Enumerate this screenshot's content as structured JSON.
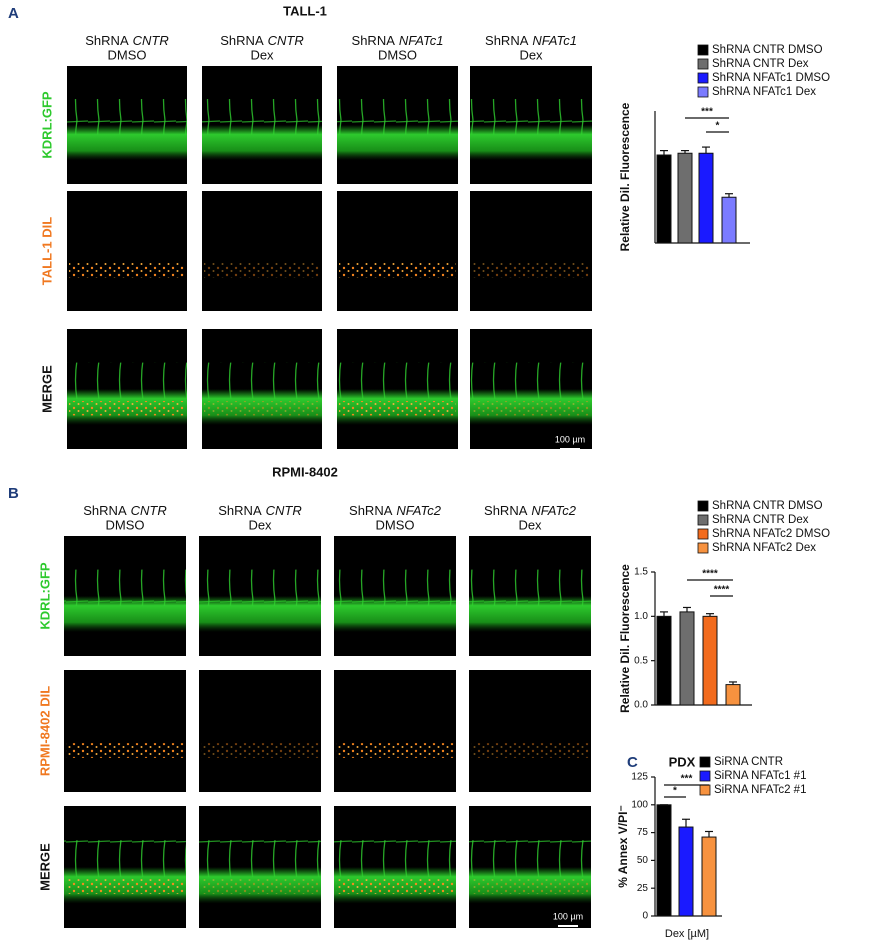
{
  "figure": {
    "panels": [
      {
        "label": "A",
        "title": "TALL-1",
        "columns": [
          {
            "prefix": "ShRNA",
            "gene": "CNTR",
            "condition": "DMSO"
          },
          {
            "prefix": "ShRNA",
            "gene": "CNTR",
            "condition": "Dex"
          },
          {
            "prefix": "ShRNA",
            "gene": "NFATc1",
            "condition": "DMSO"
          },
          {
            "prefix": "ShRNA",
            "gene": "NFATc1",
            "condition": "Dex"
          }
        ],
        "rows": [
          "KDRL:GFP",
          "TALL-1 DIL",
          "MERGE"
        ],
        "scale_bar": "100 µm"
      },
      {
        "label": "B",
        "title": "RPMI-8402",
        "columns": [
          {
            "prefix": "ShRNA",
            "gene": "CNTR",
            "condition": "DMSO"
          },
          {
            "prefix": "ShRNA",
            "gene": "CNTR",
            "condition": "Dex"
          },
          {
            "prefix": "ShRNA",
            "gene": "NFATc2",
            "condition": "DMSO"
          },
          {
            "prefix": "ShRNA",
            "gene": "NFATc2",
            "condition": "Dex"
          }
        ],
        "rows": [
          "KDRL:GFP",
          "RPMI-8402  DIL",
          "MERGE"
        ],
        "scale_bar": "100 µm"
      },
      {
        "label": "C"
      }
    ]
  },
  "chart_data": [
    {
      "type": "bar",
      "y_label": "Relative Dil.  Fluorescence",
      "ylim": [
        0,
        1.5
      ],
      "series": [
        {
          "name": "ShRNA CNTR DMSO",
          "color": "#000000",
          "values": [
            1.0
          ],
          "errors": [
            0.05
          ]
        },
        {
          "name": "ShRNA CNTR Dex",
          "color": "#6e6e6e",
          "values": [
            1.02
          ],
          "errors": [
            0.03
          ]
        },
        {
          "name": "ShRNA NFATc1 DMSO",
          "color": "#1a1aff",
          "values": [
            1.02
          ],
          "errors": [
            0.07
          ]
        },
        {
          "name": "ShRNA NFATc1 Dex",
          "color": "#7b7bff",
          "values": [
            0.52
          ],
          "errors": [
            0.04
          ]
        }
      ],
      "annotations": [
        "***",
        "*"
      ]
    },
    {
      "type": "bar",
      "y_label": "Relative Dil.  Fluorescence",
      "ylim": [
        0,
        1.5
      ],
      "yticks": [
        {
          "value": 0,
          "label": "0.0"
        },
        0.5,
        {
          "value": 1,
          "label": "1.0"
        },
        1.5
      ],
      "series": [
        {
          "name": "ShRNA CNTR DMSO",
          "color": "#000000",
          "values": [
            1.0
          ],
          "errors": [
            0.05
          ]
        },
        {
          "name": "ShRNA CNTR Dex",
          "color": "#6e6e6e",
          "values": [
            1.05
          ],
          "errors": [
            0.05
          ]
        },
        {
          "name": "ShRNA NFATc2 DMSO",
          "color": "#f26b1d",
          "values": [
            1.0
          ],
          "errors": [
            0.03
          ]
        },
        {
          "name": "ShRNA NFATc2 Dex",
          "color": "#f7923f",
          "values": [
            0.23
          ],
          "errors": [
            0.03
          ]
        }
      ],
      "annotations": [
        "****",
        "****"
      ]
    },
    {
      "type": "bar",
      "title": "PDX",
      "y_label": "% Annex V/PI⁻",
      "x_label": "Dex [µM]",
      "ylim": [
        0,
        125
      ],
      "yticks": [
        0,
        25,
        50,
        75,
        100,
        125
      ],
      "series": [
        {
          "name": "SiRNA CNTR",
          "color": "#000000",
          "values": [
            100
          ],
          "errors": [
            0
          ]
        },
        {
          "name": "SiRNA NFATc1 #1",
          "color": "#1a1aff",
          "values": [
            80
          ],
          "errors": [
            7
          ]
        },
        {
          "name": "SiRNA NFATc2 #1",
          "color": "#f7923f",
          "values": [
            71
          ],
          "errors": [
            5
          ]
        }
      ],
      "annotations": [
        "*",
        "***"
      ]
    }
  ]
}
